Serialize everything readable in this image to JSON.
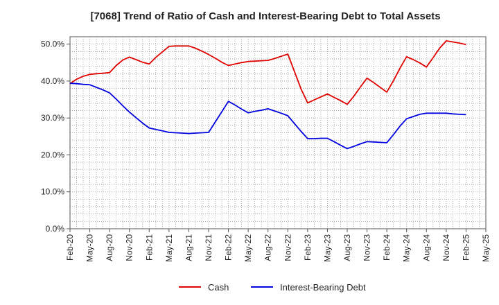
{
  "chart_data": {
    "type": "line",
    "title": "[7068]  Trend of Ratio of Cash and Interest-Bearing Debt to Total Assets",
    "xlabel": "",
    "ylabel": "",
    "ylim": [
      0,
      52
    ],
    "yticks": [
      0,
      10,
      20,
      30,
      40,
      50
    ],
    "ytick_labels": [
      "0.0%",
      "10.0%",
      "20.0%",
      "30.0%",
      "40.0%",
      "50.0%"
    ],
    "categories": [
      "Feb-20",
      "May-20",
      "Aug-20",
      "Nov-20",
      "Feb-21",
      "May-21",
      "Aug-21",
      "Nov-21",
      "Feb-22",
      "May-22",
      "Aug-22",
      "Nov-22",
      "Feb-23",
      "May-23",
      "Aug-23",
      "Nov-23",
      "Feb-24",
      "May-24",
      "Aug-24",
      "Nov-24",
      "Feb-25",
      "May-25"
    ],
    "x": [
      0,
      0.333,
      0.667,
      1,
      1.333,
      1.667,
      2,
      2.333,
      2.667,
      3,
      3.333,
      3.667,
      4,
      4.333,
      4.667,
      5,
      5.333,
      5.667,
      6,
      6.333,
      6.667,
      7,
      7.333,
      7.667,
      8,
      8.333,
      8.667,
      9,
      9.333,
      9.667,
      10,
      10.333,
      10.667,
      11,
      11.333,
      11.667,
      12,
      12.333,
      12.667,
      13,
      13.333,
      13.667,
      14,
      14.333,
      14.667,
      15,
      15.333,
      15.667,
      16,
      16.333,
      16.667,
      17,
      17.333,
      17.667,
      18,
      18.333,
      18.667,
      19,
      19.333,
      19.667,
      20
    ],
    "series": [
      {
        "name": "Cash",
        "color": "#e00000",
        "values": [
          39.3,
          40.5,
          41.3,
          41.8,
          42.0,
          42.1,
          42.3,
          44.2,
          45.7,
          46.5,
          45.8,
          45.1,
          44.6,
          46.4,
          47.9,
          49.4,
          49.5,
          49.5,
          49.5,
          48.9,
          48.1,
          47.2,
          46.2,
          45.1,
          44.2,
          44.6,
          45.0,
          45.3,
          45.4,
          45.5,
          45.6,
          46.1,
          46.7,
          47.3,
          42.6,
          37.9,
          34.1,
          34.9,
          35.7,
          36.5,
          35.6,
          34.7,
          33.7,
          35.9,
          38.4,
          40.8,
          39.6,
          38.3,
          37.0,
          40.1,
          43.5,
          46.6,
          45.8,
          44.9,
          43.8,
          46.3,
          48.9,
          50.9,
          50.6,
          50.3,
          49.9
        ]
      },
      {
        "name": "Interest-Bearing Debt",
        "color": "#0000e0",
        "values": [
          39.4,
          39.3,
          39.1,
          39.0,
          38.3,
          37.6,
          36.8,
          35.1,
          33.3,
          31.6,
          30.1,
          28.6,
          27.3,
          26.9,
          26.5,
          26.1,
          26.0,
          25.9,
          25.8,
          25.9,
          26.0,
          26.1,
          28.9,
          31.7,
          34.5,
          33.5,
          32.4,
          31.4,
          31.8,
          32.1,
          32.5,
          31.9,
          31.3,
          30.6,
          28.5,
          26.4,
          24.4,
          24.4,
          24.5,
          24.5,
          23.6,
          22.6,
          21.7,
          22.3,
          23.0,
          23.6,
          23.5,
          23.4,
          23.3,
          25.5,
          27.8,
          29.8,
          30.4,
          31.0,
          31.3,
          31.3,
          31.3,
          31.3,
          31.1,
          31.0,
          30.9
        ]
      }
    ],
    "legend_position": "bottom-center",
    "grid": true
  }
}
